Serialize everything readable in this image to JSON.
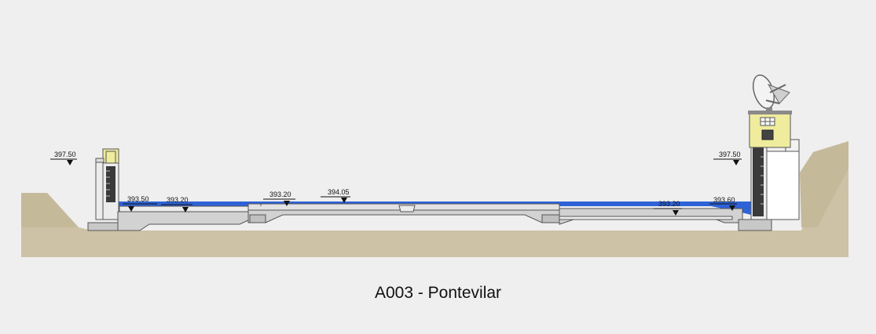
{
  "caption": "A003 - Pontevilar",
  "levels": {
    "left_top": "397.50",
    "left_low": "393.50",
    "left_mid": "393.20",
    "center_a": "393.20",
    "center_b": "394.05",
    "right_mid": "393.20",
    "right_low": "393.60",
    "right_top": "397.50"
  },
  "colors": {
    "background": "#efefef",
    "ground": "#cdc2a5",
    "water": "#2e63d8",
    "concrete": "#d2d2d2",
    "hut": "#f0ec9e"
  },
  "icons": [
    "satellite-dish-icon",
    "gauge-icon",
    "water-level-marker-icon"
  ]
}
